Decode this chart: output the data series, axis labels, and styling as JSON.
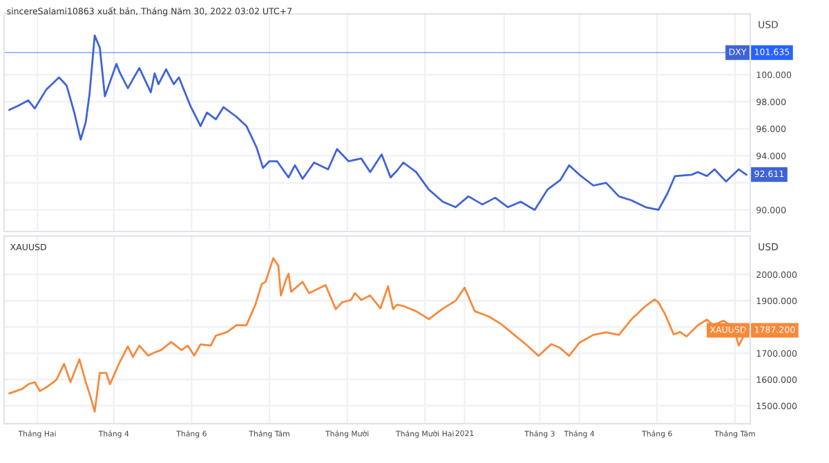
{
  "chart_data": [
    {
      "type": "line",
      "title": "sincereSalami10863 xuất bản, Tháng Năm 30, 2022 03:02 UTC+7",
      "ylabel": "USD",
      "tick_labels": "y",
      "grid": true,
      "legend": false,
      "x": [
        "2020-01-10",
        "2020-01-17",
        "2020-01-25",
        "2020-01-30",
        "2020-02-08",
        "2020-02-18",
        "2020-02-24",
        "2020-03-01",
        "2020-03-06",
        "2020-03-10",
        "2020-03-13",
        "2020-03-17",
        "2020-03-21",
        "2020-03-25",
        "2020-04-03",
        "2020-04-06",
        "2020-04-12",
        "2020-04-21",
        "2020-04-30",
        "2020-05-03",
        "2020-05-06",
        "2020-05-12",
        "2020-05-18",
        "2020-05-22",
        "2020-05-31",
        "2020-06-08",
        "2020-06-13",
        "2020-06-20",
        "2020-06-26",
        "2020-07-06",
        "2020-07-14",
        "2020-07-22",
        "2020-07-27",
        "2020-08-01",
        "2020-08-07",
        "2020-08-16",
        "2020-08-21",
        "2020-08-27",
        "2020-09-05",
        "2020-09-16",
        "2020-09-23",
        "2020-10-02",
        "2020-10-12",
        "2020-10-19",
        "2020-10-28",
        "2020-11-04",
        "2020-11-09",
        "2020-11-14",
        "2020-11-24",
        "2020-12-04",
        "2020-12-15",
        "2020-12-25",
        "2021-01-04",
        "2021-01-15",
        "2021-01-25",
        "2021-02-04",
        "2021-02-14",
        "2021-02-25",
        "2021-03-07",
        "2021-03-17",
        "2021-03-24",
        "2021-04-01",
        "2021-04-12",
        "2021-04-22",
        "2021-05-02",
        "2021-05-12",
        "2021-05-23",
        "2021-06-02",
        "2021-06-09",
        "2021-06-15",
        "2021-06-28",
        "2021-07-03",
        "2021-07-10",
        "2021-07-16",
        "2021-07-25",
        "2021-08-04",
        "2021-08-10"
      ],
      "series": [
        {
          "name": "DXY",
          "color": "#3f63d8",
          "values": [
            97.4,
            97.7,
            98.1,
            97.5,
            98.9,
            99.8,
            99.2,
            97.2,
            95.2,
            96.5,
            98.6,
            102.9,
            102.0,
            98.4,
            100.8,
            100.1,
            99.0,
            100.5,
            98.7,
            100.1,
            99.3,
            100.4,
            99.3,
            99.8,
            97.7,
            96.2,
            97.2,
            96.7,
            97.6,
            96.9,
            96.2,
            94.6,
            93.1,
            93.6,
            93.6,
            92.4,
            93.3,
            92.3,
            93.5,
            93.0,
            94.5,
            93.6,
            93.8,
            92.8,
            94.1,
            92.4,
            92.9,
            93.5,
            92.8,
            91.5,
            90.6,
            90.2,
            91.0,
            90.4,
            90.9,
            90.2,
            90.6,
            90.0,
            91.5,
            92.2,
            93.3,
            92.6,
            91.8,
            92.0,
            91.0,
            90.7,
            90.2,
            90.0,
            91.2,
            92.5,
            92.6,
            92.8,
            92.5,
            93.0,
            92.1,
            93.0,
            92.6
          ]
        }
      ],
      "ylim": [
        88.4,
        104.5
      ],
      "yticks": [
        {
          "value": 90,
          "label": "90.000"
        },
        {
          "value": 92,
          "label": null
        },
        {
          "value": 94,
          "label": "94.000"
        },
        {
          "value": 96,
          "label": "96.000"
        },
        {
          "value": 98,
          "label": "98.000"
        },
        {
          "value": 100,
          "label": "100.000"
        }
      ],
      "xlim": [
        "2020-01-06",
        "2021-08-13"
      ],
      "ref_lines": [
        {
          "axis": "y",
          "value": 101.635,
          "label": "101.635",
          "color": "#2962ff"
        }
      ],
      "annotations": [
        {
          "text": "92.611",
          "x": "2021-08-10",
          "y": 92.611
        }
      ]
    },
    {
      "type": "line",
      "title": "XAUUSD",
      "ylabel": "USD",
      "grid": true,
      "legend": false,
      "x": [
        "2020-01-10",
        "2020-01-20",
        "2020-01-25",
        "2020-01-30",
        "2020-02-03",
        "2020-02-09",
        "2020-02-16",
        "2020-02-22",
        "2020-02-27",
        "2020-03-05",
        "2020-03-10",
        "2020-03-14",
        "2020-03-17",
        "2020-03-21",
        "2020-03-26",
        "2020-03-29",
        "2020-04-05",
        "2020-04-12",
        "2020-04-16",
        "2020-04-21",
        "2020-04-28",
        "2020-05-03",
        "2020-05-08",
        "2020-05-16",
        "2020-05-24",
        "2020-05-29",
        "2020-06-03",
        "2020-06-08",
        "2020-06-16",
        "2020-06-20",
        "2020-06-29",
        "2020-07-06",
        "2020-07-14",
        "2020-07-21",
        "2020-07-26",
        "2020-07-29",
        "2020-08-04",
        "2020-08-08",
        "2020-08-10",
        "2020-08-14",
        "2020-08-16",
        "2020-08-18",
        "2020-08-27",
        "2020-09-01",
        "2020-09-14",
        "2020-09-22",
        "2020-09-27",
        "2020-10-04",
        "2020-10-07",
        "2020-10-12",
        "2020-10-19",
        "2020-10-27",
        "2020-11-02",
        "2020-11-06",
        "2020-11-09",
        "2020-11-14",
        "2020-11-24",
        "2020-12-04",
        "2020-12-15",
        "2020-12-25",
        "2021-01-01",
        "2021-01-09",
        "2021-01-20",
        "2021-01-30",
        "2021-02-09",
        "2021-02-19",
        "2021-02-28",
        "2021-03-10",
        "2021-03-17",
        "2021-03-24",
        "2021-04-01",
        "2021-04-12",
        "2021-04-22",
        "2021-05-02",
        "2021-05-12",
        "2021-05-23",
        "2021-05-30",
        "2021-06-02",
        "2021-06-07",
        "2021-06-14",
        "2021-06-19",
        "2021-06-24",
        "2021-07-03",
        "2021-07-10",
        "2021-07-15",
        "2021-07-23",
        "2021-07-31",
        "2021-08-04",
        "2021-08-10"
      ],
      "series": [
        {
          "name": "XAUUSD",
          "color": "#f7893b",
          "values": [
            1547,
            1564,
            1582,
            1590,
            1556,
            1573,
            1599,
            1660,
            1590,
            1677,
            1590,
            1530,
            1478,
            1625,
            1625,
            1582,
            1660,
            1726,
            1686,
            1729,
            1691,
            1703,
            1712,
            1743,
            1712,
            1729,
            1691,
            1734,
            1729,
            1767,
            1781,
            1807,
            1807,
            1885,
            1964,
            1972,
            2062,
            2033,
            1920,
            1981,
            2003,
            1934,
            1972,
            1929,
            1960,
            1868,
            1894,
            1903,
            1929,
            1903,
            1920,
            1871,
            1955,
            1868,
            1885,
            1880,
            1860,
            1830,
            1870,
            1900,
            1950,
            1860,
            1840,
            1810,
            1770,
            1730,
            1690,
            1735,
            1720,
            1690,
            1740,
            1770,
            1780,
            1770,
            1830,
            1880,
            1905,
            1894,
            1851,
            1772,
            1781,
            1764,
            1807,
            1828,
            1807,
            1824,
            1799,
            1729,
            1787
          ]
        }
      ],
      "ylim": [
        1432,
        2146
      ],
      "yticks": [
        {
          "value": 1500,
          "label": "1500.000"
        },
        {
          "value": 1600,
          "label": "1600.000"
        },
        {
          "value": 1700,
          "label": "1700.000"
        },
        {
          "value": 1800,
          "label": null
        },
        {
          "value": 1900,
          "label": "1900.000"
        },
        {
          "value": 2000,
          "label": "2000.000"
        }
      ],
      "xlim": [
        "2020-01-06",
        "2021-08-13"
      ],
      "xticks": [
        {
          "value": "2020-02-01",
          "label": "Tháng Hai"
        },
        {
          "value": "2020-04-01",
          "label": "Tháng 4"
        },
        {
          "value": "2020-06-01",
          "label": "Tháng 6"
        },
        {
          "value": "2020-08-01",
          "label": "Tháng Tám"
        },
        {
          "value": "2020-10-01",
          "label": "Tháng Mười"
        },
        {
          "value": "2020-12-01",
          "label": "Tháng Mười Hai"
        },
        {
          "value": "2021-01-01",
          "label": "2021"
        },
        {
          "value": "2021-03-01",
          "label": "Tháng 3"
        },
        {
          "value": "2021-04-01",
          "label": "Tháng 4"
        },
        {
          "value": "2021-06-01",
          "label": "Tháng 6"
        },
        {
          "value": "2021-08-01",
          "label": "Tháng Tám"
        }
      ],
      "annotations": [
        {
          "text": "1787.200",
          "x": "2021-08-10",
          "y": 1787.2
        }
      ]
    }
  ]
}
